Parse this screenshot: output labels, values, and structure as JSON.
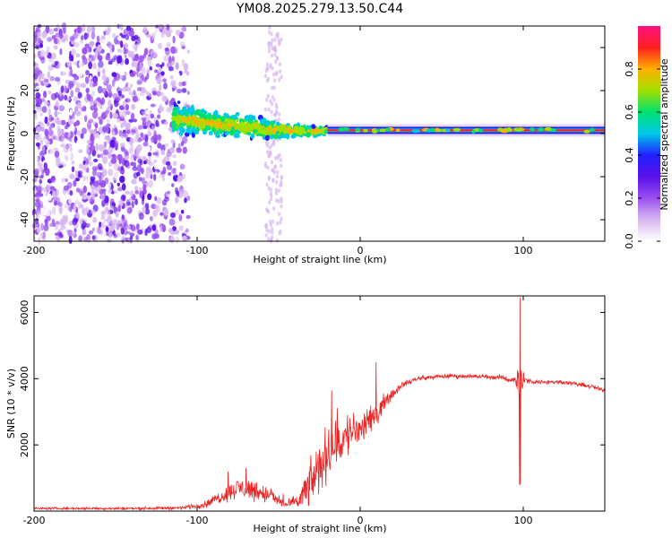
{
  "title": "YM08.2025.279.13.50.C44",
  "chart_data": [
    {
      "type": "heatmap",
      "name": "spectrogram",
      "xlabel": "Height of straight line (km)",
      "ylabel": "Frequency (Hz)",
      "xlim": [
        -200,
        150
      ],
      "ylim": [
        -50,
        50
      ],
      "xticks": [
        -200,
        -100,
        0,
        100
      ],
      "xtick_labels": [
        "-200",
        "-100",
        "0",
        "100"
      ],
      "yticks": [
        -40,
        -20,
        0,
        20,
        40
      ],
      "ytick_labels": [
        "-40",
        "-20",
        "0",
        "20",
        "40"
      ],
      "colorbar": {
        "label": "Normalized spectral amplitude",
        "range": [
          0,
          1
        ],
        "ticks": [
          0.0,
          0.2,
          0.4,
          0.6,
          0.8
        ],
        "tick_labels": [
          "0.0",
          "0.2",
          "0.4",
          "0.6",
          "0.8"
        ],
        "colors": [
          "#ffffff",
          "#d8b8f0",
          "#9a50f0",
          "#5a10e8",
          "#2020ff",
          "#00c8e8",
          "#00e070",
          "#a0e000",
          "#ffb000",
          "#ff2020",
          "#ff1080"
        ]
      },
      "features": [
        {
          "desc": "broadband noise",
          "x_range": [
            -200,
            -105
          ],
          "f_range": [
            -50,
            50
          ],
          "amplitude": 0.2
        },
        {
          "desc": "faint noise column",
          "x_range": [
            -58,
            -48
          ],
          "f_range": [
            -50,
            50
          ],
          "amplitude": 0.08
        },
        {
          "desc": "narrowing signal",
          "x": [
            -115,
            -70,
            -40,
            -20
          ],
          "f_center": [
            7,
            3,
            1,
            1.5
          ],
          "half_width": [
            9,
            7,
            4,
            2
          ]
        },
        {
          "desc": "steady tone",
          "x_range": [
            -20,
            150
          ],
          "f_center": 1.5,
          "amplitude": 0.9
        }
      ]
    },
    {
      "type": "line",
      "name": "snr",
      "xlabel": "Height of straight line (km)",
      "ylabel": "SNR (10 * v/v)",
      "xlim": [
        -200,
        150
      ],
      "ylim": [
        0,
        6500
      ],
      "xticks": [
        -200,
        -100,
        0,
        100
      ],
      "xtick_labels": [
        "-200",
        "-100",
        "0",
        "100"
      ],
      "yticks": [
        2000,
        4000,
        6000
      ],
      "ytick_labels": [
        "2000",
        "4000",
        "6000"
      ],
      "color": "#ee2222",
      "envelope": {
        "x": [
          -200,
          -140,
          -110,
          -95,
          -85,
          -75,
          -65,
          -55,
          -45,
          -38,
          -32,
          -25,
          -20,
          -12,
          -5,
          5,
          15,
          25,
          35,
          45,
          55,
          70,
          85,
          95,
          100,
          110,
          125,
          140,
          150
        ],
        "mean": [
          80,
          80,
          100,
          200,
          450,
          700,
          650,
          450,
          180,
          300,
          700,
          1300,
          1800,
          2100,
          2400,
          2600,
          3300,
          3800,
          4000,
          4050,
          4080,
          4070,
          4040,
          3950,
          3950,
          3900,
          3900,
          3780,
          3650
        ],
        "noise": [
          50,
          60,
          70,
          150,
          300,
          450,
          500,
          350,
          150,
          400,
          900,
          1200,
          1200,
          1100,
          1000,
          700,
          350,
          150,
          110,
          100,
          100,
          100,
          100,
          150,
          150,
          100,
          100,
          100,
          100
        ]
      },
      "spikes": [
        {
          "x": 98,
          "max": 6450,
          "min": 800
        }
      ]
    }
  ]
}
